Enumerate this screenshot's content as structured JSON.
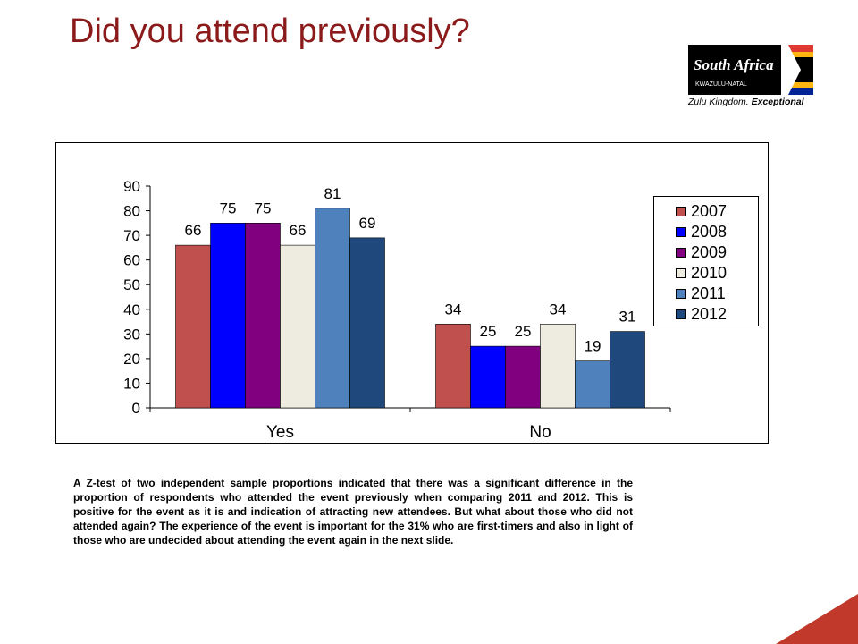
{
  "slide": {
    "title": "Did you attend previously?",
    "body": "A Z-test of two independent sample proportions indicated that there was a significant difference in the proportion of respondents who attended the event previously when comparing 2011 and 2012. This is positive for the event as it is and indication of attracting new attendees. But what about those who did not attended again? The experience of the event is important for the 31% who are first-timers and also in light of those who are undecided about attending the event again in the next slide."
  },
  "logo": {
    "brand": "South Africa",
    "region": "KWAZULU-NATAL",
    "tagline_main": "Zulu Kingdom.",
    "tagline_emphasis": "Exceptional"
  },
  "colors": {
    "title": "#8b1a1a",
    "corner_accent": "#c0392b"
  },
  "chart_data": {
    "type": "bar",
    "categories": [
      "Yes",
      "No"
    ],
    "series": [
      {
        "name": "2007",
        "color": "#c0504d",
        "values": [
          66,
          34
        ]
      },
      {
        "name": "2008",
        "color": "#0000ff",
        "values": [
          75,
          25
        ]
      },
      {
        "name": "2009",
        "color": "#800080",
        "values": [
          75,
          25
        ]
      },
      {
        "name": "2010",
        "color": "#eeece1",
        "values": [
          66,
          34
        ]
      },
      {
        "name": "2011",
        "color": "#4f81bd",
        "values": [
          81,
          19
        ]
      },
      {
        "name": "2012",
        "color": "#1f497d",
        "values": [
          69,
          31
        ]
      }
    ],
    "yticks": [
      "0",
      "10",
      "20",
      "30",
      "40",
      "50",
      "60",
      "70",
      "80",
      "90"
    ],
    "ylim": [
      0,
      90
    ],
    "data_labels": true,
    "legend_position": "right",
    "grid": false
  }
}
